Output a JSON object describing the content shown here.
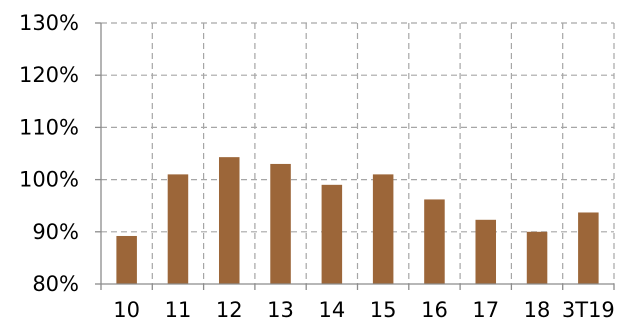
{
  "chart_data": {
    "type": "bar",
    "title": "",
    "xlabel": "",
    "ylabel": "",
    "categories": [
      "10",
      "11",
      "12",
      "13",
      "14",
      "15",
      "16",
      "17",
      "18",
      "3T19"
    ],
    "values": [
      89.2,
      101.0,
      104.3,
      103.0,
      99.0,
      101.0,
      96.2,
      92.3,
      90.0,
      93.7
    ],
    "ylim": [
      80,
      130
    ],
    "yticks": [
      "80%",
      "90%",
      "100%",
      "110%",
      "120%",
      "130%"
    ],
    "ytick_values": [
      80,
      90,
      100,
      110,
      120,
      130
    ],
    "bar_color": "#9C6639",
    "grid": true,
    "grid_style": "dashed",
    "legend": "none"
  }
}
